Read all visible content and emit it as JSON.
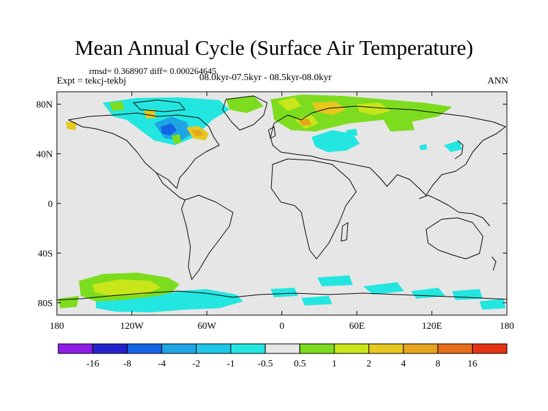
{
  "title": "Mean Annual Cycle (Surface Air Temperature)",
  "stats_text": "rmsd= 0.368907 diff= 0.000264645",
  "experiment_text": "Expt = tekcj-tekbj",
  "period_text": "08.0kyr-07.5kyr - 08.5kyr-08.0kyr",
  "season": "ANN",
  "map": {
    "lat_ticks": [
      "80N",
      "40N",
      "0",
      "40S",
      "80S"
    ],
    "lat_values": [
      80,
      40,
      0,
      -40,
      -80
    ],
    "lon_ticks": [
      "180",
      "120W",
      "60W",
      "0",
      "60E",
      "120E",
      "180"
    ],
    "lon_values": [
      -180,
      -120,
      -60,
      0,
      60,
      120,
      180
    ],
    "lat_range": [
      -90,
      90
    ],
    "lon_range": [
      -180,
      180
    ],
    "background_color": "#e6e6e6"
  },
  "colorbar": {
    "colors": [
      "#8c1ee6",
      "#2323cd",
      "#1464e6",
      "#1ea5e6",
      "#1ec8e6",
      "#23e6e1",
      "#e6e6e6",
      "#7ddc1e",
      "#c8e619",
      "#e6c81e",
      "#e6a51e",
      "#e66e19",
      "#e63214"
    ],
    "labels": [
      "-16",
      "-8",
      "-4",
      "-2",
      "-1",
      "-0.5",
      "0.5",
      "1",
      "2",
      "4",
      "8",
      "16"
    ]
  }
}
